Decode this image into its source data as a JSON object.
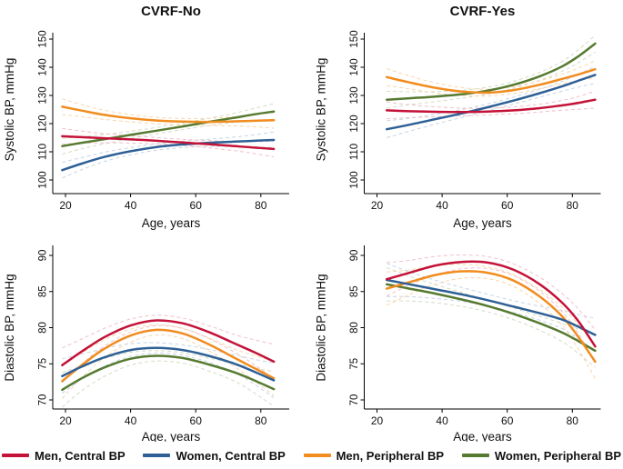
{
  "figure": {
    "colors": {
      "men_central": "#c41238",
      "women_central": "#2e6096",
      "men_peripheral": "#f18c1f",
      "women_peripheral": "#567a30",
      "axis": "#000000",
      "text": "#111111",
      "background": "#ffffff"
    },
    "ci_colors": {
      "men_central": "#f0bfca",
      "women_central": "#c7d4e2",
      "men_peripheral": "#f8d6ab",
      "women_peripheral": "#d3dcc5"
    },
    "legend": [
      {
        "label": "Men, Central BP",
        "key": "men_central"
      },
      {
        "label": "Women, Central BP",
        "key": "women_central"
      },
      {
        "label": "Men, Peripheral BP",
        "key": "men_peripheral"
      },
      {
        "label": "Women, Peripheral BP",
        "key": "women_peripheral"
      }
    ]
  },
  "chart_data": [
    {
      "id": "systolic-cvrf-no",
      "type": "line",
      "row": "top",
      "title": "CVRF-No",
      "xlabel": "Age, years",
      "ylabel": "Systolic BP, mmHg",
      "ylim": [
        100,
        150
      ],
      "yticks": [
        100,
        110,
        120,
        130,
        140,
        150
      ],
      "xticks": [
        20,
        40,
        60,
        80
      ],
      "x": [
        19,
        25,
        32,
        40,
        48,
        56,
        64,
        72,
        78,
        84
      ],
      "ci": {
        "mid": 1.1,
        "edge": 2.8
      },
      "series": [
        {
          "name": "Women, Peripheral BP",
          "key": "women_peripheral",
          "values": [
            112.0,
            113.2,
            114.5,
            116.0,
            117.5,
            119.0,
            120.6,
            122.1,
            123.3,
            124.3
          ]
        },
        {
          "name": "Men, Peripheral BP",
          "key": "men_peripheral",
          "values": [
            126.0,
            124.6,
            123.1,
            121.9,
            121.1,
            120.7,
            120.6,
            120.8,
            121.0,
            121.2
          ]
        },
        {
          "name": "Women, Central BP",
          "key": "women_central",
          "values": [
            103.5,
            105.8,
            108.2,
            110.2,
            111.7,
            112.6,
            113.2,
            113.6,
            113.9,
            114.2
          ]
        },
        {
          "name": "Men, Central BP",
          "key": "men_central",
          "values": [
            115.5,
            115.2,
            114.8,
            114.4,
            113.9,
            113.3,
            112.7,
            112.0,
            111.5,
            111.0
          ]
        }
      ]
    },
    {
      "id": "systolic-cvrf-yes",
      "type": "line",
      "row": "top",
      "title": "CVRF-Yes",
      "xlabel": "Age, years",
      "ylabel": "Systolic BP, mmHg",
      "ylim": [
        100,
        150
      ],
      "yticks": [
        100,
        110,
        120,
        130,
        140,
        150
      ],
      "xticks": [
        20,
        40,
        60,
        80
      ],
      "x": [
        23,
        30,
        38,
        46,
        54,
        62,
        70,
        77,
        82,
        87
      ],
      "ci": {
        "mid": 1.2,
        "edge": 3.0
      },
      "series": [
        {
          "name": "Women, Peripheral BP",
          "key": "women_peripheral",
          "values": [
            128.5,
            129.0,
            129.6,
            130.4,
            131.7,
            133.8,
            136.8,
            140.4,
            144.0,
            148.4
          ]
        },
        {
          "name": "Men, Peripheral BP",
          "key": "men_peripheral",
          "values": [
            136.5,
            134.6,
            132.7,
            131.4,
            131.0,
            131.9,
            133.8,
            135.9,
            137.5,
            139.3
          ]
        },
        {
          "name": "Women, Central BP",
          "key": "women_central",
          "values": [
            118.0,
            119.6,
            121.6,
            123.6,
            125.8,
            128.2,
            130.8,
            133.3,
            135.3,
            137.3
          ]
        },
        {
          "name": "Men, Central BP",
          "key": "men_central",
          "values": [
            124.7,
            124.4,
            124.2,
            124.1,
            124.3,
            124.7,
            125.5,
            126.5,
            127.4,
            128.5
          ]
        }
      ]
    },
    {
      "id": "diastolic-cvrf-no",
      "type": "line",
      "row": "bottom",
      "title": "",
      "xlabel": "Age, years",
      "ylabel": "Diastolic BP, mmHg",
      "ylim": [
        70,
        90
      ],
      "yticks": [
        70,
        75,
        80,
        85,
        90
      ],
      "xticks": [
        20,
        40,
        60,
        80
      ],
      "x": [
        19,
        25,
        32,
        40,
        48,
        56,
        64,
        72,
        78,
        84
      ],
      "ci": {
        "mid": 0.7,
        "edge": 2.4
      },
      "series": [
        {
          "name": "Women, Peripheral BP",
          "key": "women_peripheral",
          "values": [
            71.4,
            73.0,
            74.5,
            75.7,
            76.1,
            75.8,
            74.9,
            73.8,
            72.7,
            71.5
          ]
        },
        {
          "name": "Men, Peripheral BP",
          "key": "men_peripheral",
          "values": [
            72.6,
            74.8,
            77.1,
            78.9,
            79.7,
            79.2,
            77.7,
            75.8,
            74.4,
            73.0
          ]
        },
        {
          "name": "Women, Central BP",
          "key": "women_central",
          "values": [
            73.3,
            74.6,
            75.9,
            76.9,
            77.2,
            76.9,
            76.1,
            75.0,
            73.9,
            72.7
          ]
        },
        {
          "name": "Men, Central BP",
          "key": "men_central",
          "values": [
            74.8,
            76.7,
            78.7,
            80.3,
            81.0,
            80.6,
            79.4,
            77.8,
            76.6,
            75.3
          ]
        }
      ]
    },
    {
      "id": "diastolic-cvrf-yes",
      "type": "line",
      "row": "bottom",
      "title": "",
      "xlabel": "Age, years",
      "ylabel": "Diastolic BP, mmHg",
      "ylim": [
        70,
        90
      ],
      "yticks": [
        70,
        75,
        80,
        85,
        90
      ],
      "xticks": [
        20,
        40,
        60,
        80
      ],
      "x": [
        23,
        30,
        38,
        46,
        54,
        62,
        70,
        77,
        82,
        87
      ],
      "ci": {
        "mid": 0.8,
        "edge": 2.3
      },
      "series": [
        {
          "name": "Women, Peripheral BP",
          "key": "women_peripheral",
          "values": [
            86.0,
            85.4,
            84.7,
            83.9,
            83.0,
            81.9,
            80.6,
            79.3,
            78.1,
            76.8
          ]
        },
        {
          "name": "Men, Peripheral BP",
          "key": "men_peripheral",
          "values": [
            85.4,
            86.3,
            87.3,
            87.8,
            87.6,
            86.5,
            84.3,
            81.5,
            78.6,
            75.3
          ]
        },
        {
          "name": "Women, Central BP",
          "key": "women_central",
          "values": [
            86.6,
            86.0,
            85.3,
            84.6,
            83.8,
            82.9,
            82.0,
            81.1,
            80.1,
            79.0
          ]
        },
        {
          "name": "Men, Central BP",
          "key": "men_central",
          "values": [
            86.7,
            87.6,
            88.6,
            89.1,
            89.0,
            88.0,
            86.0,
            83.4,
            80.8,
            77.4
          ]
        }
      ]
    }
  ]
}
